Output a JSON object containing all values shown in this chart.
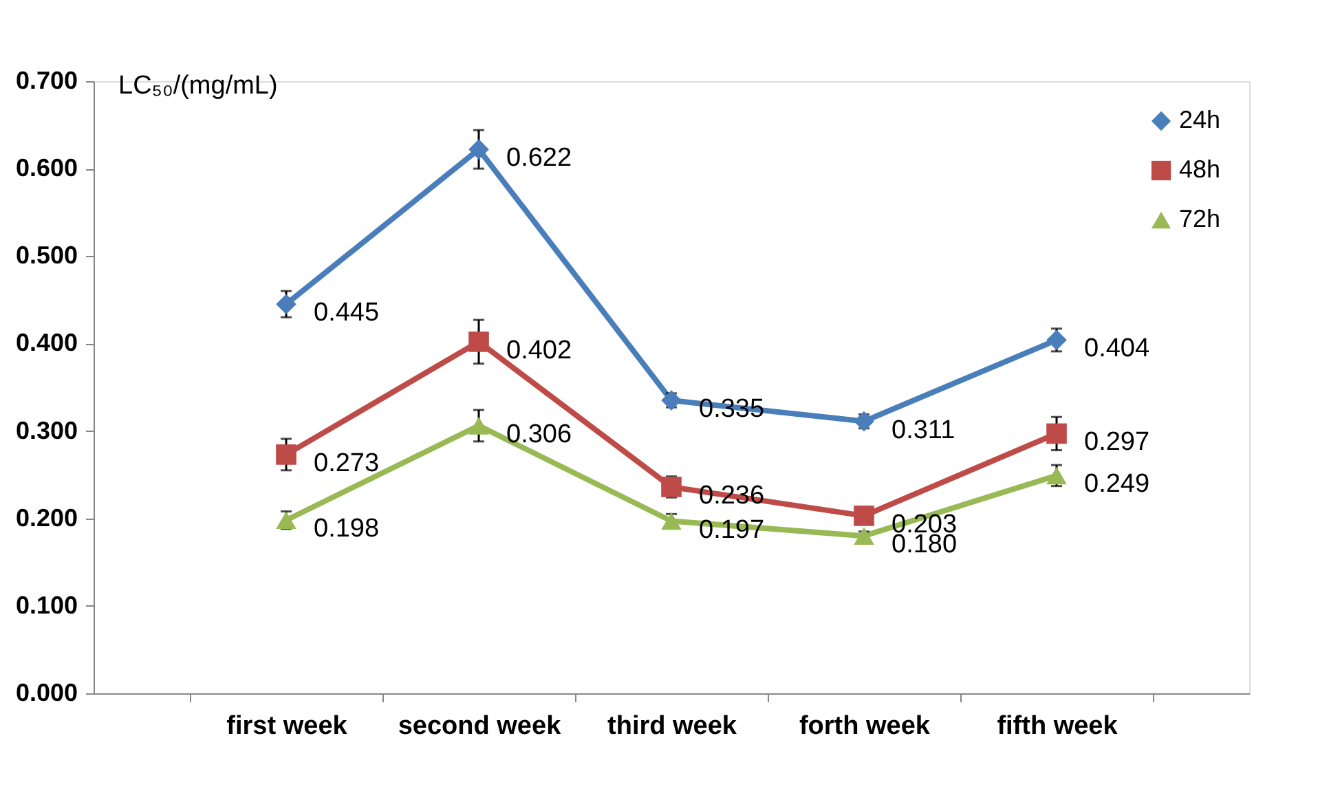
{
  "chart_data": {
    "type": "line",
    "ylabel": "LC₅₀/(mg/mL)",
    "categories": [
      "first week",
      "second week",
      "third week",
      "forth week",
      "fifth week"
    ],
    "series": [
      {
        "name": "24h",
        "color": "#4a7ebb",
        "marker": "diamond",
        "values": [
          0.445,
          0.622,
          0.335,
          0.311,
          0.404
        ],
        "value_labels": [
          "0.445",
          "0.622",
          "0.335",
          "0.311",
          "0.404"
        ],
        "errors": [
          0.015,
          0.022,
          0.008,
          0.008,
          0.013
        ]
      },
      {
        "name": "48h",
        "color": "#be4b48",
        "marker": "square",
        "values": [
          0.273,
          0.402,
          0.236,
          0.203,
          0.297
        ],
        "value_labels": [
          "0.273",
          "0.402",
          "0.236",
          "0.203",
          "0.297"
        ],
        "errors": [
          0.018,
          0.025,
          0.012,
          null,
          0.019
        ]
      },
      {
        "name": "72h",
        "color": "#98b954",
        "marker": "triangle",
        "values": [
          0.198,
          0.306,
          0.197,
          0.18,
          0.249
        ],
        "value_labels": [
          "0.198",
          "0.306",
          "0.197",
          "0.180",
          "0.249"
        ],
        "errors": [
          0.01,
          0.018,
          0.008,
          0.005,
          0.012
        ]
      }
    ],
    "ylim": [
      0,
      0.7
    ],
    "yticks": [
      {
        "value": 0,
        "label": "0.000"
      },
      {
        "value": 0.1,
        "label": "0.100"
      },
      {
        "value": 0.2,
        "label": "0.200"
      },
      {
        "value": 0.3,
        "label": "0.300"
      },
      {
        "value": 0.4,
        "label": "0.400"
      },
      {
        "value": 0.5,
        "label": "0.500"
      },
      {
        "value": 0.6,
        "label": "0.600"
      },
      {
        "value": 0.7,
        "label": "0.700"
      }
    ],
    "grid": false,
    "legend": "top right",
    "line_style": "solid"
  }
}
